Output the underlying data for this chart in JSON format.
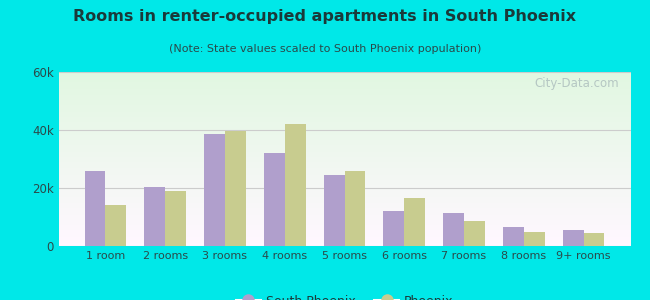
{
  "title": "Rooms in renter-occupied apartments in South Phoenix",
  "subtitle": "(Note: State values scaled to South Phoenix population)",
  "categories": [
    "1 room",
    "2 rooms",
    "3 rooms",
    "4 rooms",
    "5 rooms",
    "6 rooms",
    "7 rooms",
    "8 rooms",
    "9+ rooms"
  ],
  "south_phoenix": [
    26000,
    20500,
    38500,
    32000,
    24500,
    12000,
    11500,
    6500,
    5500
  ],
  "phoenix": [
    14000,
    19000,
    39500,
    42000,
    26000,
    16500,
    8500,
    5000,
    4500
  ],
  "south_phoenix_color": "#b09fcc",
  "phoenix_color": "#c8cc8f",
  "ylim": [
    0,
    60000
  ],
  "yticks": [
    0,
    20000,
    40000,
    60000
  ],
  "ytick_labels": [
    "0",
    "20k",
    "40k",
    "60k"
  ],
  "background_outer": "#00e8e8",
  "watermark": "City-Data.com",
  "bar_width": 0.35,
  "title_color": "#1a3a3a",
  "subtitle_color": "#2a4a4a",
  "tick_color": "#2a4a4a"
}
